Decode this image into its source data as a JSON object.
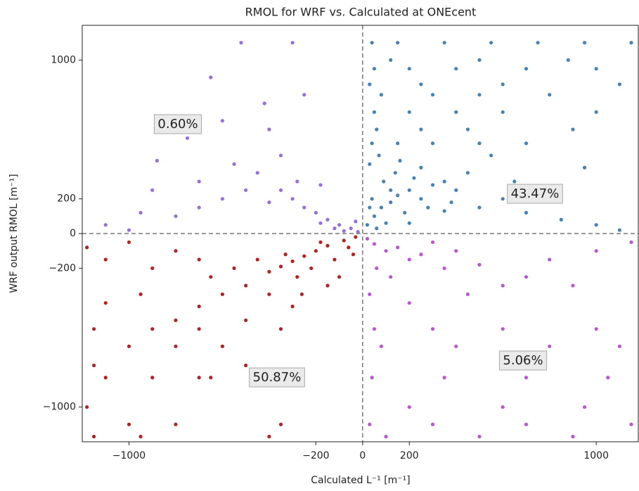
{
  "chart_data": {
    "type": "scatter",
    "title": "RMOL for WRF vs. Calculated at ONEcent",
    "x_label": "Calculated L⁻¹ [m⁻¹]",
    "y_label": "WRF output RMOL [m⁻¹]",
    "xlim": [
      -1200,
      1180
    ],
    "ylim": [
      -1200,
      1200
    ],
    "xticks": [
      {
        "value": -1000,
        "label": "−1000"
      },
      {
        "value": -200,
        "label": "−200"
      },
      0,
      200,
      1000
    ],
    "yticks": [
      {
        "value": -1000,
        "label": "−1000"
      },
      {
        "value": -200,
        "label": "−200"
      },
      0,
      200,
      1000
    ],
    "annotations": [
      "0.60%",
      "43.47%",
      "5.06%",
      "50.87%"
    ],
    "series": [
      {
        "color": "#9370db",
        "x": [
          -50,
          -100,
          -150,
          -200,
          -250,
          -300,
          -350,
          -400,
          -280,
          -450,
          -500,
          -600,
          -700,
          -800,
          -950,
          -1100,
          -350,
          -550,
          -880,
          -250,
          -400,
          -600,
          -750,
          -300,
          -520,
          -20,
          -80,
          -120,
          -180,
          -30,
          -700,
          -900,
          -180,
          -420,
          -650,
          -1000
        ],
        "values": [
          30,
          50,
          80,
          120,
          150,
          200,
          250,
          180,
          300,
          350,
          250,
          200,
          150,
          100,
          120,
          50,
          450,
          400,
          420,
          800,
          600,
          650,
          550,
          1100,
          1100,
          10,
          15,
          30,
          60,
          70,
          300,
          250,
          280,
          750,
          900,
          20
        ]
      },
      {
        "color": "#4682b4",
        "x": [
          20,
          50,
          80,
          120,
          150,
          200,
          250,
          300,
          60,
          100,
          180,
          40,
          90,
          140,
          220,
          30,
          70,
          160,
          250,
          350,
          400,
          500,
          600,
          700,
          850,
          1000,
          1100,
          450,
          550,
          650,
          800,
          950,
          40,
          150,
          300,
          500,
          700,
          60,
          250,
          450,
          900,
          50,
          200,
          400,
          600,
          1000,
          80,
          300,
          500,
          800,
          30,
          250,
          600,
          1100,
          50,
          200,
          400,
          700,
          1000,
          40,
          150,
          350,
          550,
          750,
          950,
          1150,
          120,
          500,
          880,
          350,
          120,
          200,
          280,
          30,
          380
        ],
        "values": [
          50,
          100,
          150,
          180,
          220,
          250,
          200,
          280,
          30,
          60,
          120,
          200,
          300,
          350,
          320,
          400,
          450,
          420,
          380,
          300,
          250,
          150,
          200,
          120,
          80,
          50,
          20,
          350,
          450,
          300,
          250,
          380,
          520,
          520,
          520,
          520,
          520,
          600,
          600,
          600,
          600,
          700,
          700,
          700,
          700,
          700,
          800,
          800,
          800,
          800,
          860,
          860,
          860,
          860,
          950,
          950,
          950,
          950,
          950,
          1100,
          1100,
          1100,
          1100,
          1100,
          1100,
          1100,
          1000,
          1000,
          1000,
          130,
          250,
          60,
          150,
          150,
          180
        ]
      },
      {
        "color": "#b22222",
        "x": [
          -30,
          -80,
          -150,
          -200,
          -250,
          -300,
          -350,
          -400,
          -120,
          -60,
          -180,
          -220,
          -280,
          -330,
          -450,
          -500,
          -550,
          -650,
          -700,
          -800,
          -900,
          -1000,
          -1100,
          -1180,
          -600,
          -700,
          -800,
          -950,
          -1100,
          -400,
          -300,
          -500,
          -900,
          -1150,
          -350,
          -700,
          -1000,
          -600,
          -800,
          -1150,
          -500,
          -900,
          -700,
          -1100,
          -650,
          -1180,
          -1000,
          -800,
          -1150,
          -350,
          -400,
          -950,
          -150,
          -100,
          -260,
          -40
        ],
        "values": [
          -20,
          -40,
          -70,
          -100,
          -130,
          -160,
          -190,
          -220,
          -150,
          -80,
          -50,
          -200,
          -250,
          -120,
          -150,
          -300,
          -200,
          -250,
          -150,
          -100,
          -200,
          -50,
          -150,
          -80,
          -350,
          -420,
          -500,
          -350,
          -400,
          -350,
          -420,
          -500,
          -550,
          -550,
          -550,
          -550,
          -650,
          -650,
          -650,
          -760,
          -760,
          -830,
          -830,
          -830,
          -830,
          -1000,
          -1100,
          -1100,
          -1170,
          -1100,
          -1170,
          -1170,
          -300,
          -250,
          -350,
          -120
        ]
      },
      {
        "color": "#ba55d3",
        "x": [
          20,
          50,
          100,
          150,
          200,
          250,
          300,
          400,
          60,
          120,
          350,
          500,
          600,
          700,
          800,
          1000,
          1150,
          30,
          200,
          450,
          900,
          50,
          300,
          600,
          1000,
          80,
          400,
          800,
          1100,
          40,
          350,
          700,
          1050,
          200,
          600,
          950,
          30,
          300,
          700,
          1150,
          100,
          500,
          900
        ],
        "values": [
          -30,
          -60,
          -100,
          -80,
          -150,
          -120,
          -50,
          -100,
          -200,
          -250,
          -200,
          -180,
          -300,
          -250,
          -150,
          -100,
          -50,
          -350,
          -400,
          -350,
          -300,
          -550,
          -550,
          -550,
          -550,
          -650,
          -650,
          -650,
          -650,
          -830,
          -830,
          -830,
          -830,
          -1000,
          -1000,
          -1000,
          -1100,
          -1100,
          -1100,
          -1100,
          -1170,
          -1170,
          -1170
        ]
      }
    ]
  }
}
